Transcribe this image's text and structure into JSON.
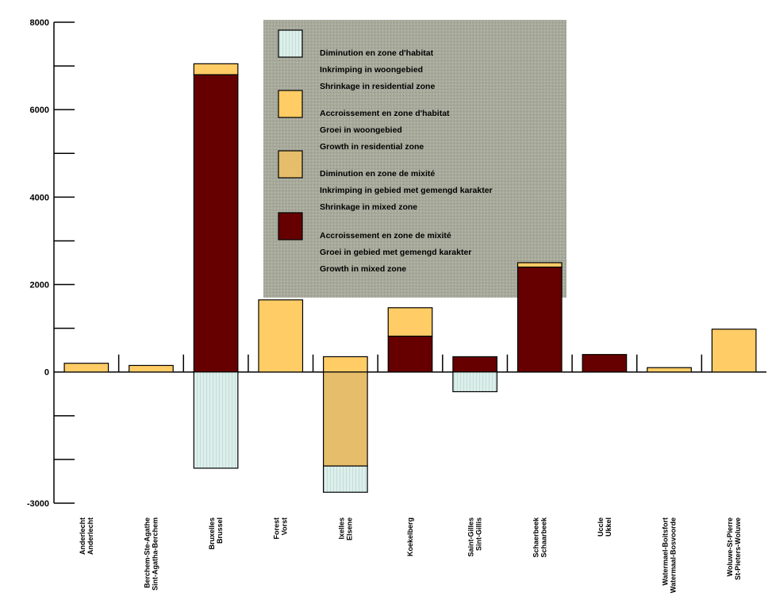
{
  "chart_data": {
    "type": "bar",
    "stacked": true,
    "title": "",
    "xlabel": "",
    "ylabel": "",
    "ylim": [
      -3000,
      8000
    ],
    "yticks": [
      -3000,
      -2000,
      -1000,
      0,
      1000,
      2000,
      3000,
      4000,
      5000,
      6000,
      7000,
      8000
    ],
    "ytick_labels": [
      {
        "value": 8000,
        "label": "8000"
      },
      {
        "value": 6000,
        "label": "6000"
      },
      {
        "value": 4000,
        "label": "4000"
      },
      {
        "value": 2000,
        "label": "2000"
      },
      {
        "value": 0,
        "label": "0"
      },
      {
        "value": -3000,
        "label": "-3000"
      }
    ],
    "categories": [
      [
        "Anderlecht",
        "Anderlecht"
      ],
      [
        "Berchem-Ste-Agathe",
        "Sint-Agatha-Berchem"
      ],
      [
        "Bruxelles",
        "Brussel"
      ],
      [
        "Forest",
        "Vorst"
      ],
      [
        "Ixelles",
        "Elsene"
      ],
      [
        "Koekelberg"
      ],
      [
        "Saint-Gilles",
        "Sint-Gillis"
      ],
      [
        "Schaerbeek",
        "Schaarbeek"
      ],
      [
        "Uccle",
        "Ukkel"
      ],
      [
        "Watermael-Boitsfort",
        "Watermaal-Bosvoorde"
      ],
      [
        "Woluwe-St-Pierre",
        "St-Pieters-Woluwe"
      ]
    ],
    "series": [
      {
        "name": [
          "Diminution en zone d'habitat",
          "Inkrimping in woongebied",
          "Shrinkage in residential zone"
        ],
        "color": "#dcefea",
        "values": [
          0,
          0,
          -2200,
          0,
          -600,
          0,
          -450,
          0,
          0,
          0,
          0
        ]
      },
      {
        "name": [
          "Accroissement en zone d'habitat",
          "Groei in woongebied",
          "Growth in residential zone"
        ],
        "color": "#ffcc66",
        "values": [
          200,
          150,
          250,
          1650,
          350,
          650,
          0,
          100,
          0,
          100,
          980
        ]
      },
      {
        "name": [
          "Diminution en zone de mixité",
          "Inkrimping in gebied met gemengd karakter",
          "Shrinkage in mixed zone"
        ],
        "color": "#e6bd6a",
        "values": [
          0,
          0,
          0,
          0,
          -2150,
          0,
          0,
          0,
          0,
          0,
          0
        ]
      },
      {
        "name": [
          "Accroissement en zone de mixité",
          "Groei in gebied met gemengd karakter",
          "Growth in mixed zone"
        ],
        "color": "#660000",
        "values": [
          0,
          0,
          6800,
          0,
          0,
          820,
          350,
          2400,
          400,
          0,
          0
        ]
      }
    ],
    "legend_position": "top-center",
    "grid": false
  }
}
